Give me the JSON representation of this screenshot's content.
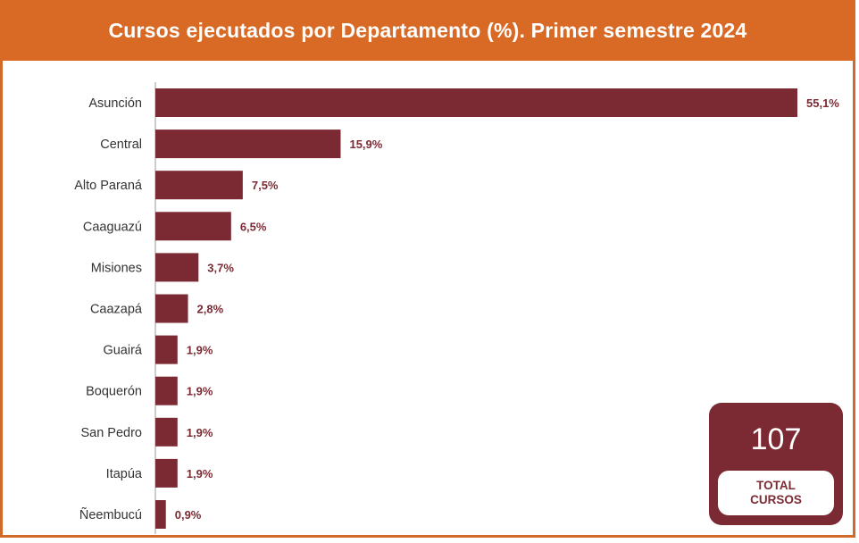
{
  "colors": {
    "header_bg": "#d86a26",
    "bar": "#7b2a33",
    "value_text": "#7b2a33",
    "total_box": "#7b2a33"
  },
  "chart_data": {
    "type": "bar",
    "orientation": "horizontal",
    "title": "Cursos ejecutados por Departamento (%). Primer semestre 2024",
    "categories": [
      "Asunción",
      "Central",
      "Alto Paraná",
      "Caaguazú",
      "Misiones",
      "Caazapá",
      "Guairá",
      "Boquerón",
      "San Pedro",
      "Itapúa",
      "Ñeembucú"
    ],
    "values": [
      55.1,
      15.9,
      7.5,
      6.5,
      3.7,
      2.8,
      1.9,
      1.9,
      1.9,
      1.9,
      0.9
    ],
    "value_labels": [
      "55,1%",
      "15,9%",
      "7,5%",
      "6,5%",
      "3,7%",
      "2,8%",
      "1,9%",
      "1,9%",
      "1,9%",
      "1,9%",
      "0,9%"
    ],
    "xlim": [
      0,
      55.1
    ],
    "grid": false,
    "legend": "none"
  },
  "total": {
    "value": "107",
    "label": "TOTAL\nCURSOS"
  }
}
